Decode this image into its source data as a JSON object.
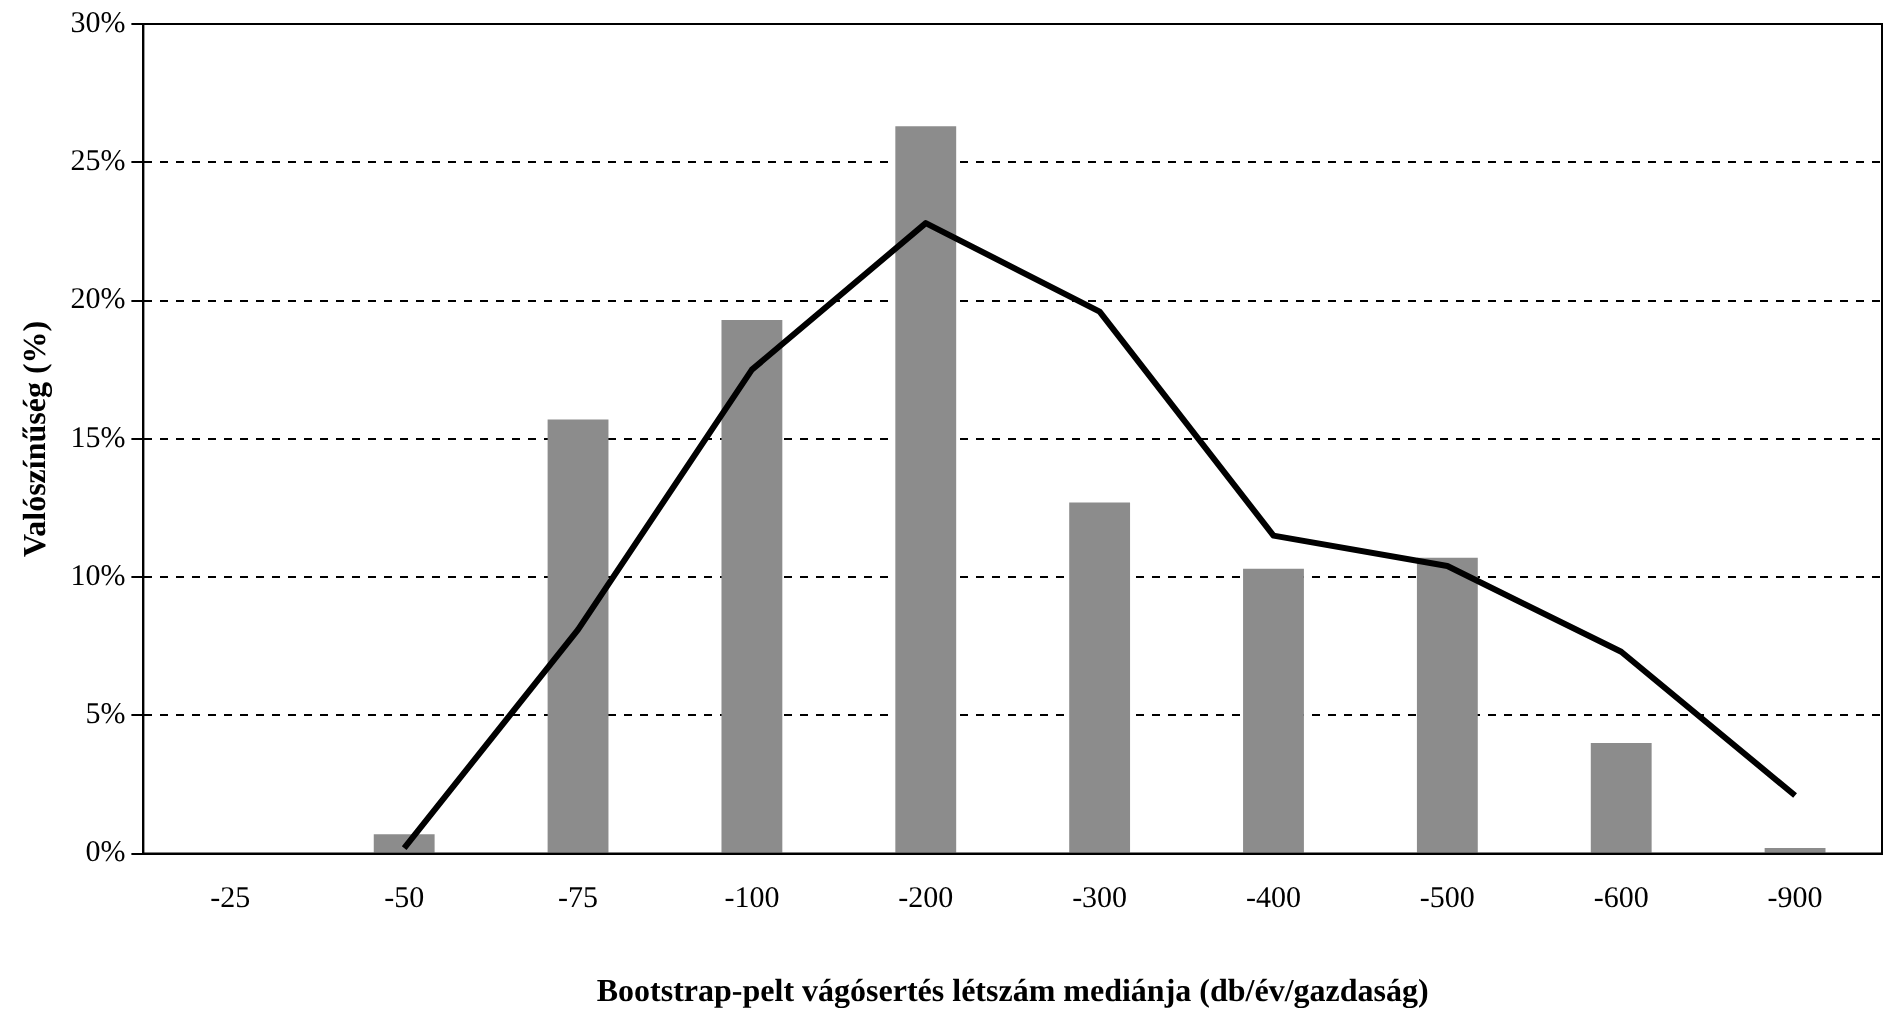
{
  "chart_data": {
    "type": "bar",
    "xlabel": "Bootstrap-pelt vágósertés létszám mediánja (db/év/gazdaság)",
    "ylabel": "Valószínűség (%)",
    "categories": [
      "-25",
      "-50",
      "-75",
      "-100",
      "-200",
      "-300",
      "-400",
      "-500",
      "-600",
      "-900"
    ],
    "series": [
      {
        "color": "#8c8c8c",
        "values": [
          0,
          0.7,
          15.7,
          19.3,
          26.3,
          12.7,
          10.3,
          10.7,
          4.0,
          0.2
        ]
      },
      {
        "type": "line",
        "color": "#000000",
        "values": [
          null,
          0.2,
          8.1,
          17.5,
          22.8,
          19.6,
          11.5,
          10.4,
          7.3,
          2.1
        ]
      }
    ],
    "ylim": [
      0,
      30
    ],
    "yticks": [
      {
        "value": 0,
        "label": "0%"
      },
      {
        "value": 5,
        "label": "5%"
      },
      {
        "value": 10,
        "label": "10%"
      },
      {
        "value": 15,
        "label": "15%"
      },
      {
        "value": 20,
        "label": "20%"
      },
      {
        "value": 25,
        "label": "25%"
      },
      {
        "value": 30,
        "label": "30%"
      }
    ],
    "grid": "y",
    "legend": false,
    "marker": "none",
    "line_style": "solid"
  }
}
